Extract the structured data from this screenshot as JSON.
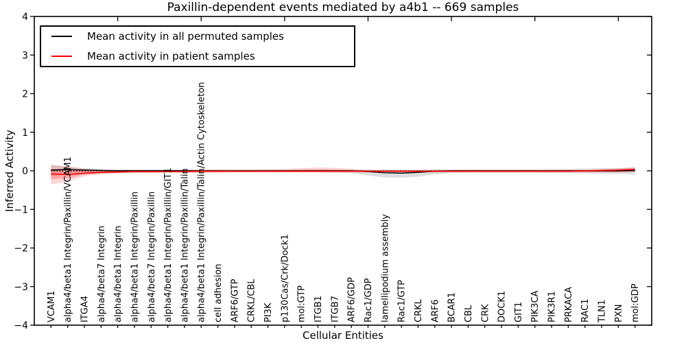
{
  "chart_data": {
    "type": "line",
    "title": "Paxillin-dependent events mediated by a4b1 -- 669 samples",
    "xlabel": "Cellular Entities",
    "ylabel": "Inferred Activity",
    "ylim": [
      -4,
      4
    ],
    "grid": false,
    "legend_position": "upper left",
    "top_tick_interval": 5,
    "yticks": [
      {
        "v": 4,
        "label": "4"
      },
      {
        "v": 3,
        "label": "3"
      },
      {
        "v": 2,
        "label": "2"
      },
      {
        "v": 1,
        "label": "1"
      },
      {
        "v": 0,
        "label": "0"
      },
      {
        "v": -1,
        "label": "−1"
      },
      {
        "v": -2,
        "label": "−2"
      },
      {
        "v": -3,
        "label": "−3"
      },
      {
        "v": -4,
        "label": "−4"
      }
    ],
    "categories": [
      "VCAM1",
      "alpha4/beta1 Integrin/Paxillin/VCAM1",
      "ITGA4",
      "alpha4/beta7 Integrin",
      "alpha4/beta1 Integrin",
      "alpha4/beta1 Integrin/Paxillin",
      "alpha4/beta7 Integrin/Paxillin",
      "alpha4/beta1 Integrin/Paxillin/GIT1",
      "alpha4/beta1 Integrin/Paxillin/Talin",
      "alpha4/beta1 Integrin/Paxillin/Talin/Actin Cytoskeleton",
      "cell adhesion",
      "ARF6/GTP",
      "CRKL/CBL",
      "PI3K",
      "p130Cas/Crk/Dock1",
      "mol:GTP",
      "ITGB1",
      "ITGB7",
      "ARF6/GDP",
      "Rac1/GDP",
      "lamellipodium assembly",
      "Rac1/GTP",
      "CRKL",
      "ARF6",
      "BCAR1",
      "CBL",
      "CRK",
      "DOCK1",
      "GIT1",
      "PIK3CA",
      "PIK3R1",
      "PRKACA",
      "RAC1",
      "TLN1",
      "PXN",
      "mol:GDP"
    ],
    "zero_reference_line": {
      "value": 0,
      "style": "dotted",
      "color": "#000000"
    },
    "series": [
      {
        "name": "Mean activity in all permuted samples",
        "color": "#000000",
        "band_opacity": 0.13,
        "values": [
          0.02,
          0.035,
          0.02,
          0.01,
          0,
          0,
          0,
          0,
          0,
          0,
          0,
          0,
          0,
          0,
          0,
          0,
          0,
          0,
          0,
          -0.02,
          -0.05,
          -0.06,
          -0.04,
          -0.01,
          0,
          0,
          0,
          0,
          0,
          0,
          0,
          0,
          0,
          0,
          0,
          0.01
        ],
        "band_upper": [
          0.16,
          0.1,
          0.07,
          0.05,
          0.04,
          0.04,
          0.04,
          0.04,
          0.04,
          0.04,
          0.04,
          0.04,
          0.04,
          0.04,
          0.04,
          0.04,
          0.04,
          0.04,
          0.04,
          0.03,
          0.03,
          0.03,
          0.03,
          0.04,
          0.04,
          0.04,
          0.04,
          0.04,
          0.04,
          0.04,
          0.05,
          0.05,
          0.06,
          0.07,
          0.07,
          0.08
        ],
        "band_lower": [
          -0.14,
          -0.1,
          -0.08,
          -0.06,
          -0.05,
          -0.04,
          -0.04,
          -0.04,
          -0.04,
          -0.04,
          -0.04,
          -0.04,
          -0.04,
          -0.04,
          -0.04,
          -0.04,
          -0.04,
          -0.05,
          -0.06,
          -0.12,
          -0.17,
          -0.18,
          -0.15,
          -0.09,
          -0.06,
          -0.05,
          -0.05,
          -0.05,
          -0.05,
          -0.05,
          -0.06,
          -0.06,
          -0.07,
          -0.07,
          -0.08,
          -0.08
        ]
      },
      {
        "name": "Mean activity in patient samples",
        "color": "#ff0000",
        "band_opacity": 0.16,
        "values": [
          -0.08,
          -0.1,
          -0.06,
          -0.04,
          -0.03,
          -0.02,
          -0.02,
          -0.02,
          -0.02,
          -0.01,
          -0.01,
          -0.01,
          -0.01,
          -0.01,
          -0.01,
          -0.01,
          -0.01,
          -0.01,
          -0.01,
          -0.01,
          -0.01,
          -0.01,
          -0.01,
          -0.01,
          -0.01,
          -0.01,
          -0.01,
          -0.01,
          -0.01,
          -0.01,
          -0.01,
          -0.01,
          0,
          0.01,
          0.02,
          0.04
        ],
        "band_upper": [
          0.15,
          0.12,
          0.05,
          0.03,
          0.02,
          0.02,
          0.02,
          0.02,
          0.02,
          0.02,
          0.02,
          0.02,
          0.02,
          0.03,
          0.04,
          0.07,
          0.09,
          0.08,
          0.05,
          0.02,
          0.02,
          0.02,
          0.02,
          0.02,
          0.02,
          0.02,
          0.02,
          0.02,
          0.02,
          0.02,
          0.02,
          0.03,
          0.03,
          0.04,
          0.07,
          0.1
        ],
        "band_lower": [
          -0.35,
          -0.28,
          -0.14,
          -0.09,
          -0.07,
          -0.06,
          -0.06,
          -0.05,
          -0.05,
          -0.05,
          -0.05,
          -0.04,
          -0.04,
          -0.04,
          -0.04,
          -0.04,
          -0.04,
          -0.04,
          -0.04,
          -0.04,
          -0.04,
          -0.04,
          -0.04,
          -0.04,
          -0.04,
          -0.04,
          -0.04,
          -0.04,
          -0.04,
          -0.04,
          -0.04,
          -0.04,
          -0.04,
          -0.04,
          -0.04,
          -0.03
        ],
        "inner_band_upper": [
          0.05,
          0.03,
          0,
          -0.005,
          0,
          0,
          0,
          0,
          0,
          0,
          0,
          0,
          0,
          0,
          0.01,
          0.02,
          0.03,
          0.02,
          0.01,
          0,
          0,
          0,
          0,
          0,
          0,
          0,
          0,
          0,
          0,
          0,
          0,
          0,
          0.01,
          0.01,
          0.03,
          0.06
        ],
        "inner_band_lower": [
          -0.22,
          -0.19,
          -0.1,
          -0.07,
          -0.05,
          -0.04,
          -0.04,
          -0.03,
          -0.03,
          -0.03,
          -0.03,
          -0.03,
          -0.03,
          -0.03,
          -0.03,
          -0.03,
          -0.03,
          -0.03,
          -0.03,
          -0.03,
          -0.03,
          -0.03,
          -0.03,
          -0.03,
          -0.03,
          -0.03,
          -0.03,
          -0.03,
          -0.03,
          -0.03,
          -0.03,
          -0.03,
          -0.03,
          -0.03,
          -0.03,
          -0.02
        ]
      }
    ]
  }
}
